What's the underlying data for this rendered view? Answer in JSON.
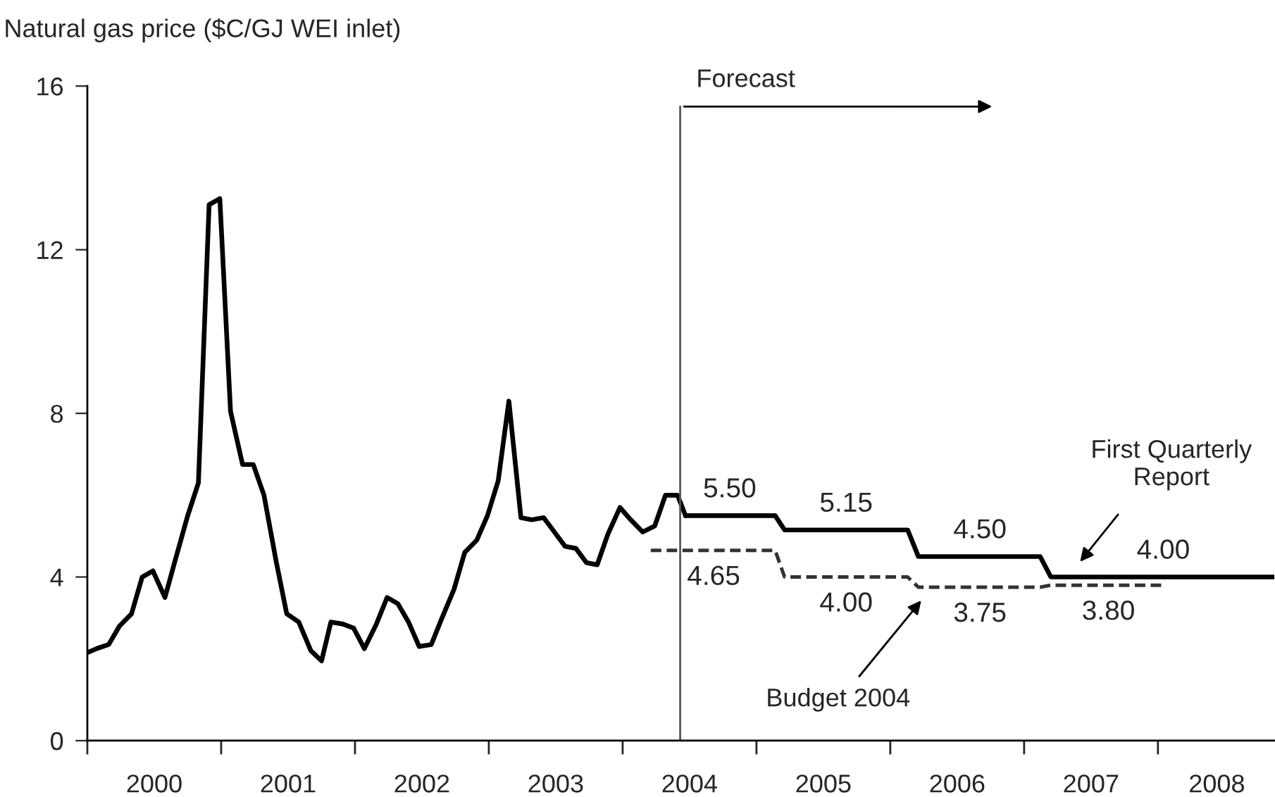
{
  "chart_data": {
    "type": "line",
    "ylabel": "Natural gas price ($C/GJ WEI inlet)",
    "xlim": [
      2000,
      2008.87
    ],
    "ylim": [
      0,
      16
    ],
    "yticks": [
      0,
      4,
      8,
      12,
      16
    ],
    "xticks": [
      {
        "value": 2000,
        "label": null
      },
      {
        "value": 2001,
        "label": null
      },
      {
        "value": 2002,
        "label": null
      },
      {
        "value": 2003,
        "label": null
      },
      {
        "value": 2004,
        "label": null
      },
      {
        "value": 2005,
        "label": null
      },
      {
        "value": 2006,
        "label": null
      },
      {
        "value": 2007,
        "label": null
      },
      {
        "value": 2008,
        "label": null
      },
      {
        "value": 2000.5,
        "label": "2000"
      },
      {
        "value": 2001.5,
        "label": "2001"
      },
      {
        "value": 2002.5,
        "label": "2002"
      },
      {
        "value": 2003.5,
        "label": "2003"
      },
      {
        "value": 2004.5,
        "label": "2004"
      },
      {
        "value": 2005.5,
        "label": "2005"
      },
      {
        "value": 2006.5,
        "label": "2006"
      },
      {
        "value": 2007.5,
        "label": "2007"
      },
      {
        "value": 2008.44,
        "label": "2008"
      }
    ],
    "grid": false,
    "legend": false,
    "marker": "none",
    "series": [
      {
        "color": "#000000",
        "line_style": "solid",
        "x": [
          2000.0,
          2000.07,
          2000.16,
          2000.24,
          2000.33,
          2000.41,
          2000.49,
          2000.58,
          2000.66,
          2000.75,
          2000.83,
          2000.91,
          2000.99,
          2001.07,
          2001.16,
          2001.24,
          2001.32,
          2001.41,
          2001.49,
          2001.58,
          2001.67,
          2001.75,
          2001.82,
          2001.91,
          2001.99,
          2002.07,
          2002.16,
          2002.24,
          2002.32,
          2002.4,
          2002.48,
          2002.57,
          2002.65,
          2002.74,
          2002.82,
          2002.91,
          2002.99,
          2003.07,
          2003.15,
          2003.24,
          2003.32,
          2003.41,
          2003.49,
          2003.57,
          2003.65,
          2003.73,
          2003.81,
          2003.89,
          2003.98,
          2004.06,
          2004.15,
          2004.24,
          2004.32,
          2004.41,
          2004.47
        ],
        "values": [
          2.15,
          2.25,
          2.35,
          2.8,
          3.1,
          4.0,
          4.15,
          3.5,
          4.45,
          5.5,
          6.3,
          13.1,
          13.25,
          8.05,
          6.75,
          6.75,
          6.0,
          4.4,
          3.1,
          2.9,
          2.2,
          1.95,
          2.9,
          2.85,
          2.75,
          2.25,
          2.85,
          3.5,
          3.35,
          2.9,
          2.3,
          2.35,
          3.0,
          3.7,
          4.6,
          4.9,
          5.5,
          6.35,
          8.3,
          5.45,
          5.4,
          5.45,
          5.1,
          4.75,
          4.7,
          4.35,
          4.3,
          5.05,
          5.7,
          5.4,
          5.1,
          5.25,
          6.0,
          6.0,
          5.5
        ]
      },
      {
        "color": "#000000",
        "line_style": "solid",
        "x": [
          2004.47,
          2004.8,
          2005.14,
          2005.21,
          2005.67,
          2006.13,
          2006.21,
          2006.67,
          2007.12,
          2007.2,
          2008.04,
          2008.87
        ],
        "values": [
          5.5,
          5.5,
          5.5,
          5.15,
          5.15,
          5.15,
          4.5,
          4.5,
          4.5,
          4.0,
          4.0,
          4.0
        ],
        "value_labels": [
          null,
          "5.50",
          null,
          null,
          "5.15",
          null,
          null,
          "4.50",
          null,
          null,
          "4.00",
          null
        ]
      },
      {
        "color": "#333333",
        "line_style": "dashed",
        "x": [
          2004.21,
          2004.68,
          2005.14,
          2005.21,
          2005.67,
          2006.13,
          2006.21,
          2006.67,
          2007.12,
          2007.2,
          2007.63,
          2008.06
        ],
        "values": [
          4.65,
          4.65,
          4.65,
          4.0,
          4.0,
          4.0,
          3.75,
          3.75,
          3.75,
          3.8,
          3.8,
          3.8
        ],
        "value_labels": [
          null,
          "4.65",
          null,
          null,
          "4.00",
          null,
          null,
          "3.75",
          null,
          null,
          "3.80",
          null
        ]
      }
    ],
    "ref_lines": [
      {
        "axis": "x",
        "value": 2004.43,
        "label": "Forecast",
        "color": "#555555"
      }
    ],
    "annotations": [
      "First Quarterly\nReport",
      "Budget 2004"
    ]
  }
}
